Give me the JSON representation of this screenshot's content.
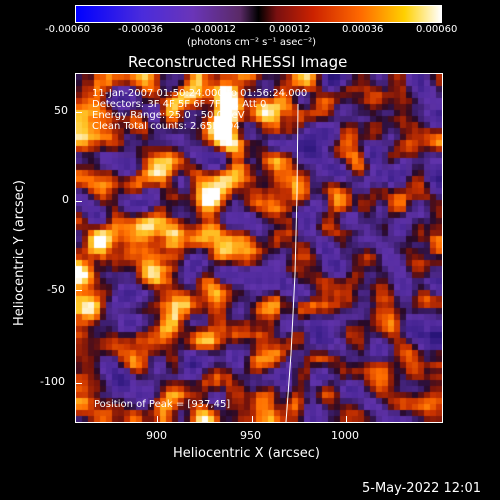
{
  "colorbar": {
    "tick_labels": [
      "-0.00060",
      "-0.00036",
      "-0.00012",
      "0.00012",
      "0.00036",
      "0.00060"
    ],
    "units_label": "(photons cm⁻² s⁻¹ asec⁻²)"
  },
  "plot": {
    "title": "Reconstructed RHESSI Image",
    "xlabel": "Heliocentric X (arcsec)",
    "ylabel": "Heliocentric Y (arcsec)",
    "x_ticks": [
      "900",
      "950",
      "1000"
    ],
    "y_ticks": [
      "50",
      "0",
      "-50",
      "-100"
    ],
    "info_lines": [
      "11-Jan-2007 01:50:24.000 to 01:56:24.000",
      "Detectors: 3F 4F 5F 6F 7F 8F, Att 0",
      "Energy Range: 25.0 - 50.0 keV",
      "Clean     Total counts: 2.65E+04"
    ],
    "peak_label": "Position of Peak = [937,45]"
  },
  "footer": {
    "timestamp": "5-May-2022 12:01"
  },
  "chart_data": {
    "type": "heatmap",
    "xlim": [
      860,
      1047
    ],
    "ylim": [
      -122,
      66
    ],
    "peak": [
      937,
      45
    ],
    "colormap_range": [
      -0.0006,
      0.0006
    ]
  }
}
